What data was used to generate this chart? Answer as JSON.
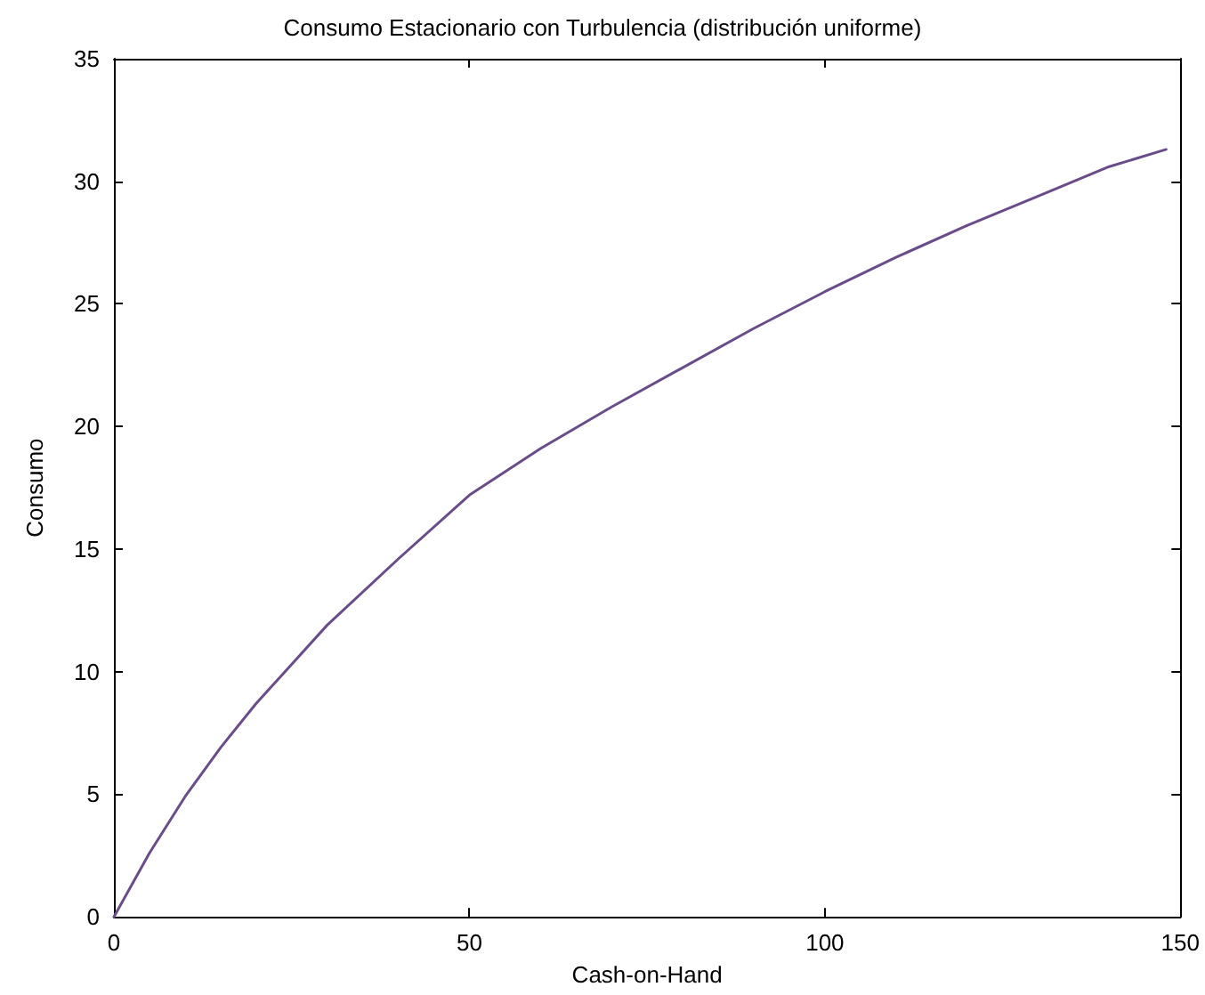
{
  "chart_data": {
    "type": "line",
    "title": "Consumo Estacionario con Turbulencia (distribución uniforme)",
    "xlabel": "Cash-on-Hand",
    "ylabel": "Consumo",
    "x": [
      0,
      5,
      10,
      15,
      20,
      25,
      30,
      40,
      50,
      60,
      70,
      80,
      90,
      100,
      110,
      120,
      130,
      140,
      148
    ],
    "series": [
      {
        "color": "#6b4c8a",
        "values": [
          0,
          2.6,
          4.9,
          6.9,
          8.7,
          10.3,
          11.9,
          14.6,
          17.2,
          19.1,
          20.8,
          22.4,
          24.0,
          25.5,
          26.9,
          28.2,
          29.4,
          30.6,
          31.3
        ]
      }
    ],
    "xlim": [
      0,
      150
    ],
    "xticks": [
      0,
      50,
      100,
      150
    ],
    "ylim": [
      0,
      35
    ],
    "yticks": [
      0,
      5,
      10,
      15,
      20,
      25,
      30,
      35
    ],
    "grid": false,
    "marker": "none",
    "line_style": "solid"
  }
}
